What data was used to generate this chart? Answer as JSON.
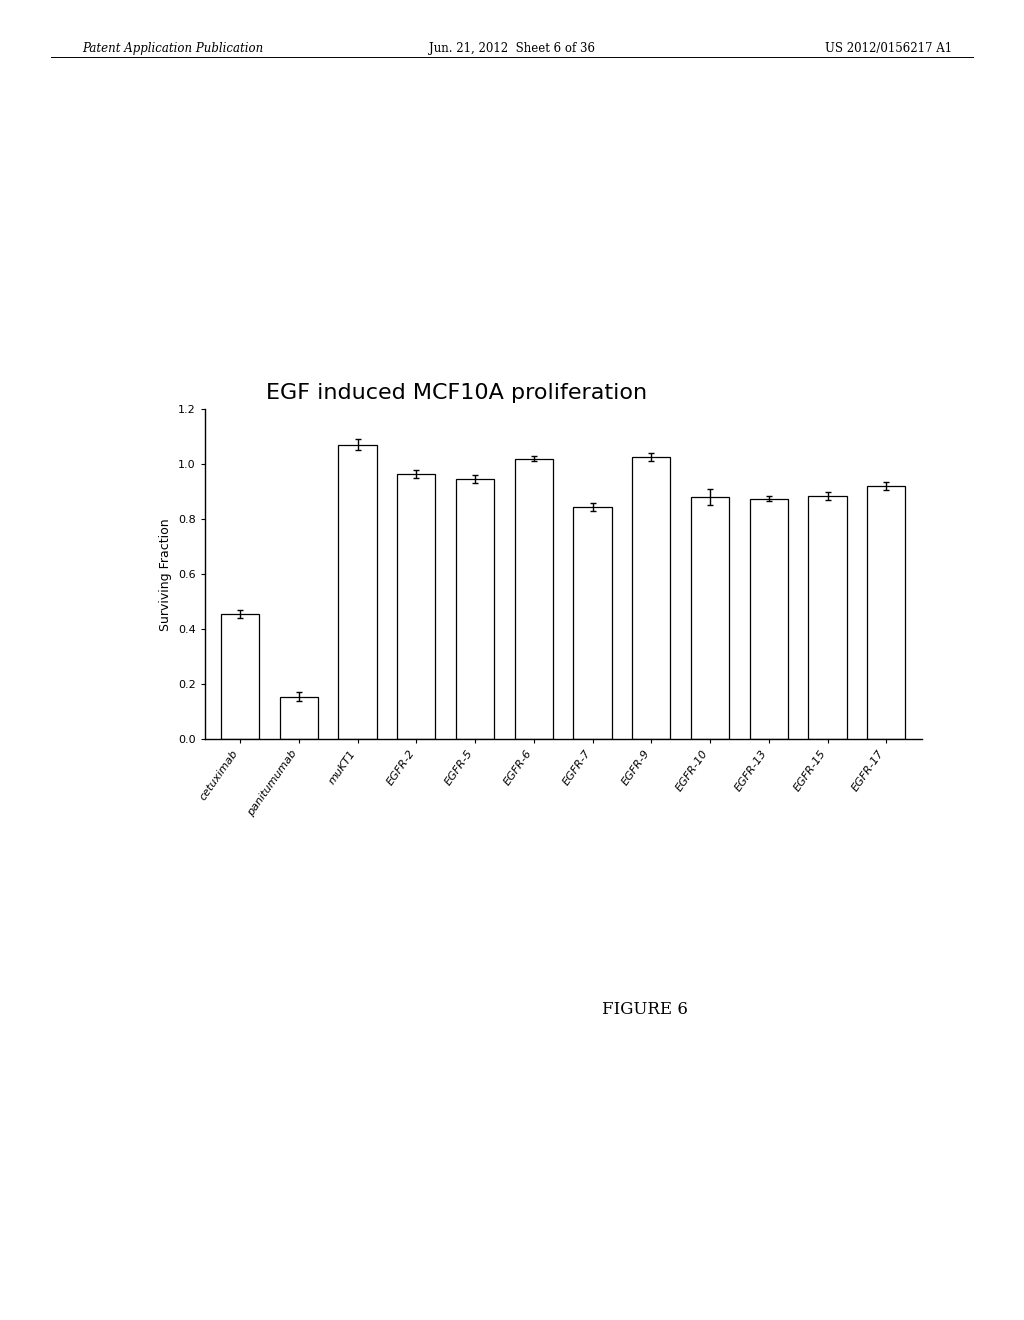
{
  "title": "EGF induced MCF10A proliferation",
  "ylabel": "Surviving Fraction",
  "categories": [
    "cetuximab",
    "panitumumab",
    "muKT1",
    "EGFR-2",
    "EGFR-5",
    "EGFR-6",
    "EGFR-7",
    "EGFR-9",
    "EGFR-10",
    "EGFR-13",
    "EGFR-15",
    "EGFR-17"
  ],
  "values": [
    0.455,
    0.155,
    1.07,
    0.965,
    0.945,
    1.02,
    0.845,
    1.025,
    0.88,
    0.875,
    0.885,
    0.92
  ],
  "errors": [
    0.015,
    0.015,
    0.02,
    0.015,
    0.015,
    0.01,
    0.015,
    0.015,
    0.03,
    0.01,
    0.015,
    0.015
  ],
  "ylim": [
    0.0,
    1.2
  ],
  "yticks": [
    0.0,
    0.2,
    0.4,
    0.6,
    0.8,
    1.0,
    1.2
  ],
  "bar_color": "#ffffff",
  "bar_edge_color": "#000000",
  "background_color": "#ffffff",
  "figure_caption": "FIGURE 6",
  "header_left": "Patent Application Publication",
  "header_center": "Jun. 21, 2012  Sheet 6 of 36",
  "header_right": "US 2012/0156217 A1",
  "title_fontsize": 16,
  "axis_fontsize": 9,
  "tick_fontsize": 8,
  "caption_fontsize": 12
}
